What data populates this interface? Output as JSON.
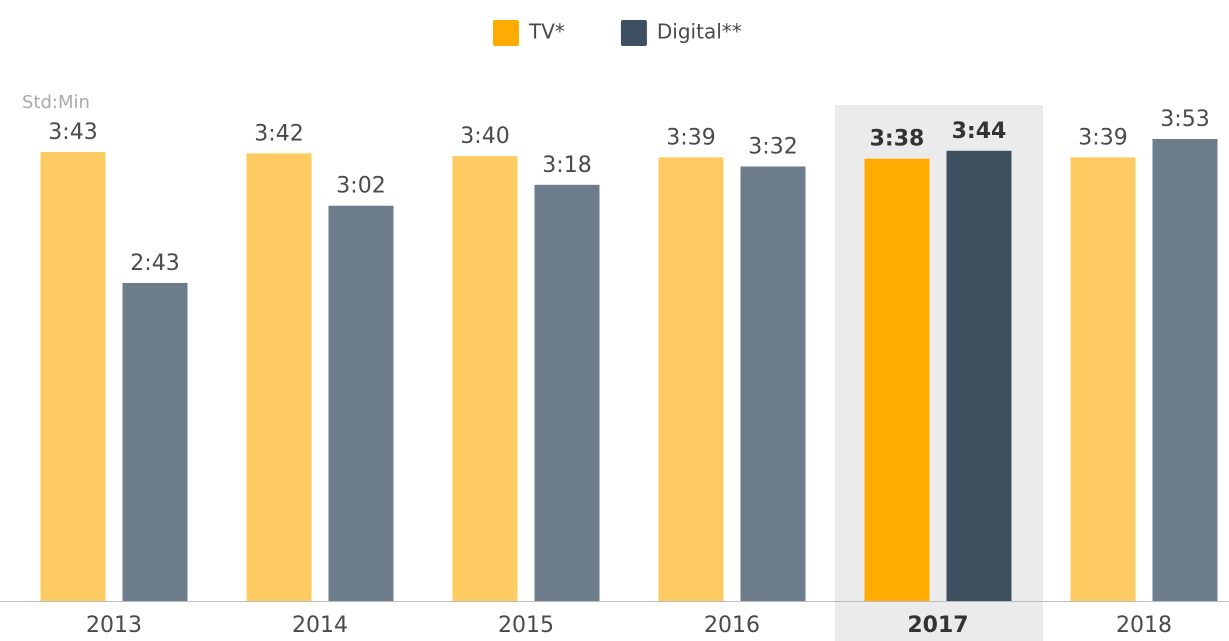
{
  "chart_data": {
    "type": "bar",
    "unit_label": "Std:Min",
    "categories": [
      "2013",
      "2014",
      "2015",
      "2016",
      "2017",
      "2018"
    ],
    "highlight": "2017",
    "series": [
      {
        "name": "TV*",
        "color": "#fdcb62",
        "highlight_color": "#ffab00",
        "values": [
          3.43,
          3.42,
          3.4,
          3.39,
          3.38,
          3.39
        ],
        "value_labels": [
          "3:43",
          "3:42",
          "3:40",
          "3:39",
          "3:38",
          "3:39"
        ]
      },
      {
        "name": "Digital**",
        "color": "#6c7c8a",
        "highlight_color": "#3e4f60",
        "values": [
          2.43,
          3.02,
          3.18,
          3.32,
          3.44,
          3.53
        ],
        "value_labels": [
          "2:43",
          "3:02",
          "3:18",
          "3:32",
          "3:44",
          "3:53"
        ]
      }
    ],
    "legend": "top"
  }
}
